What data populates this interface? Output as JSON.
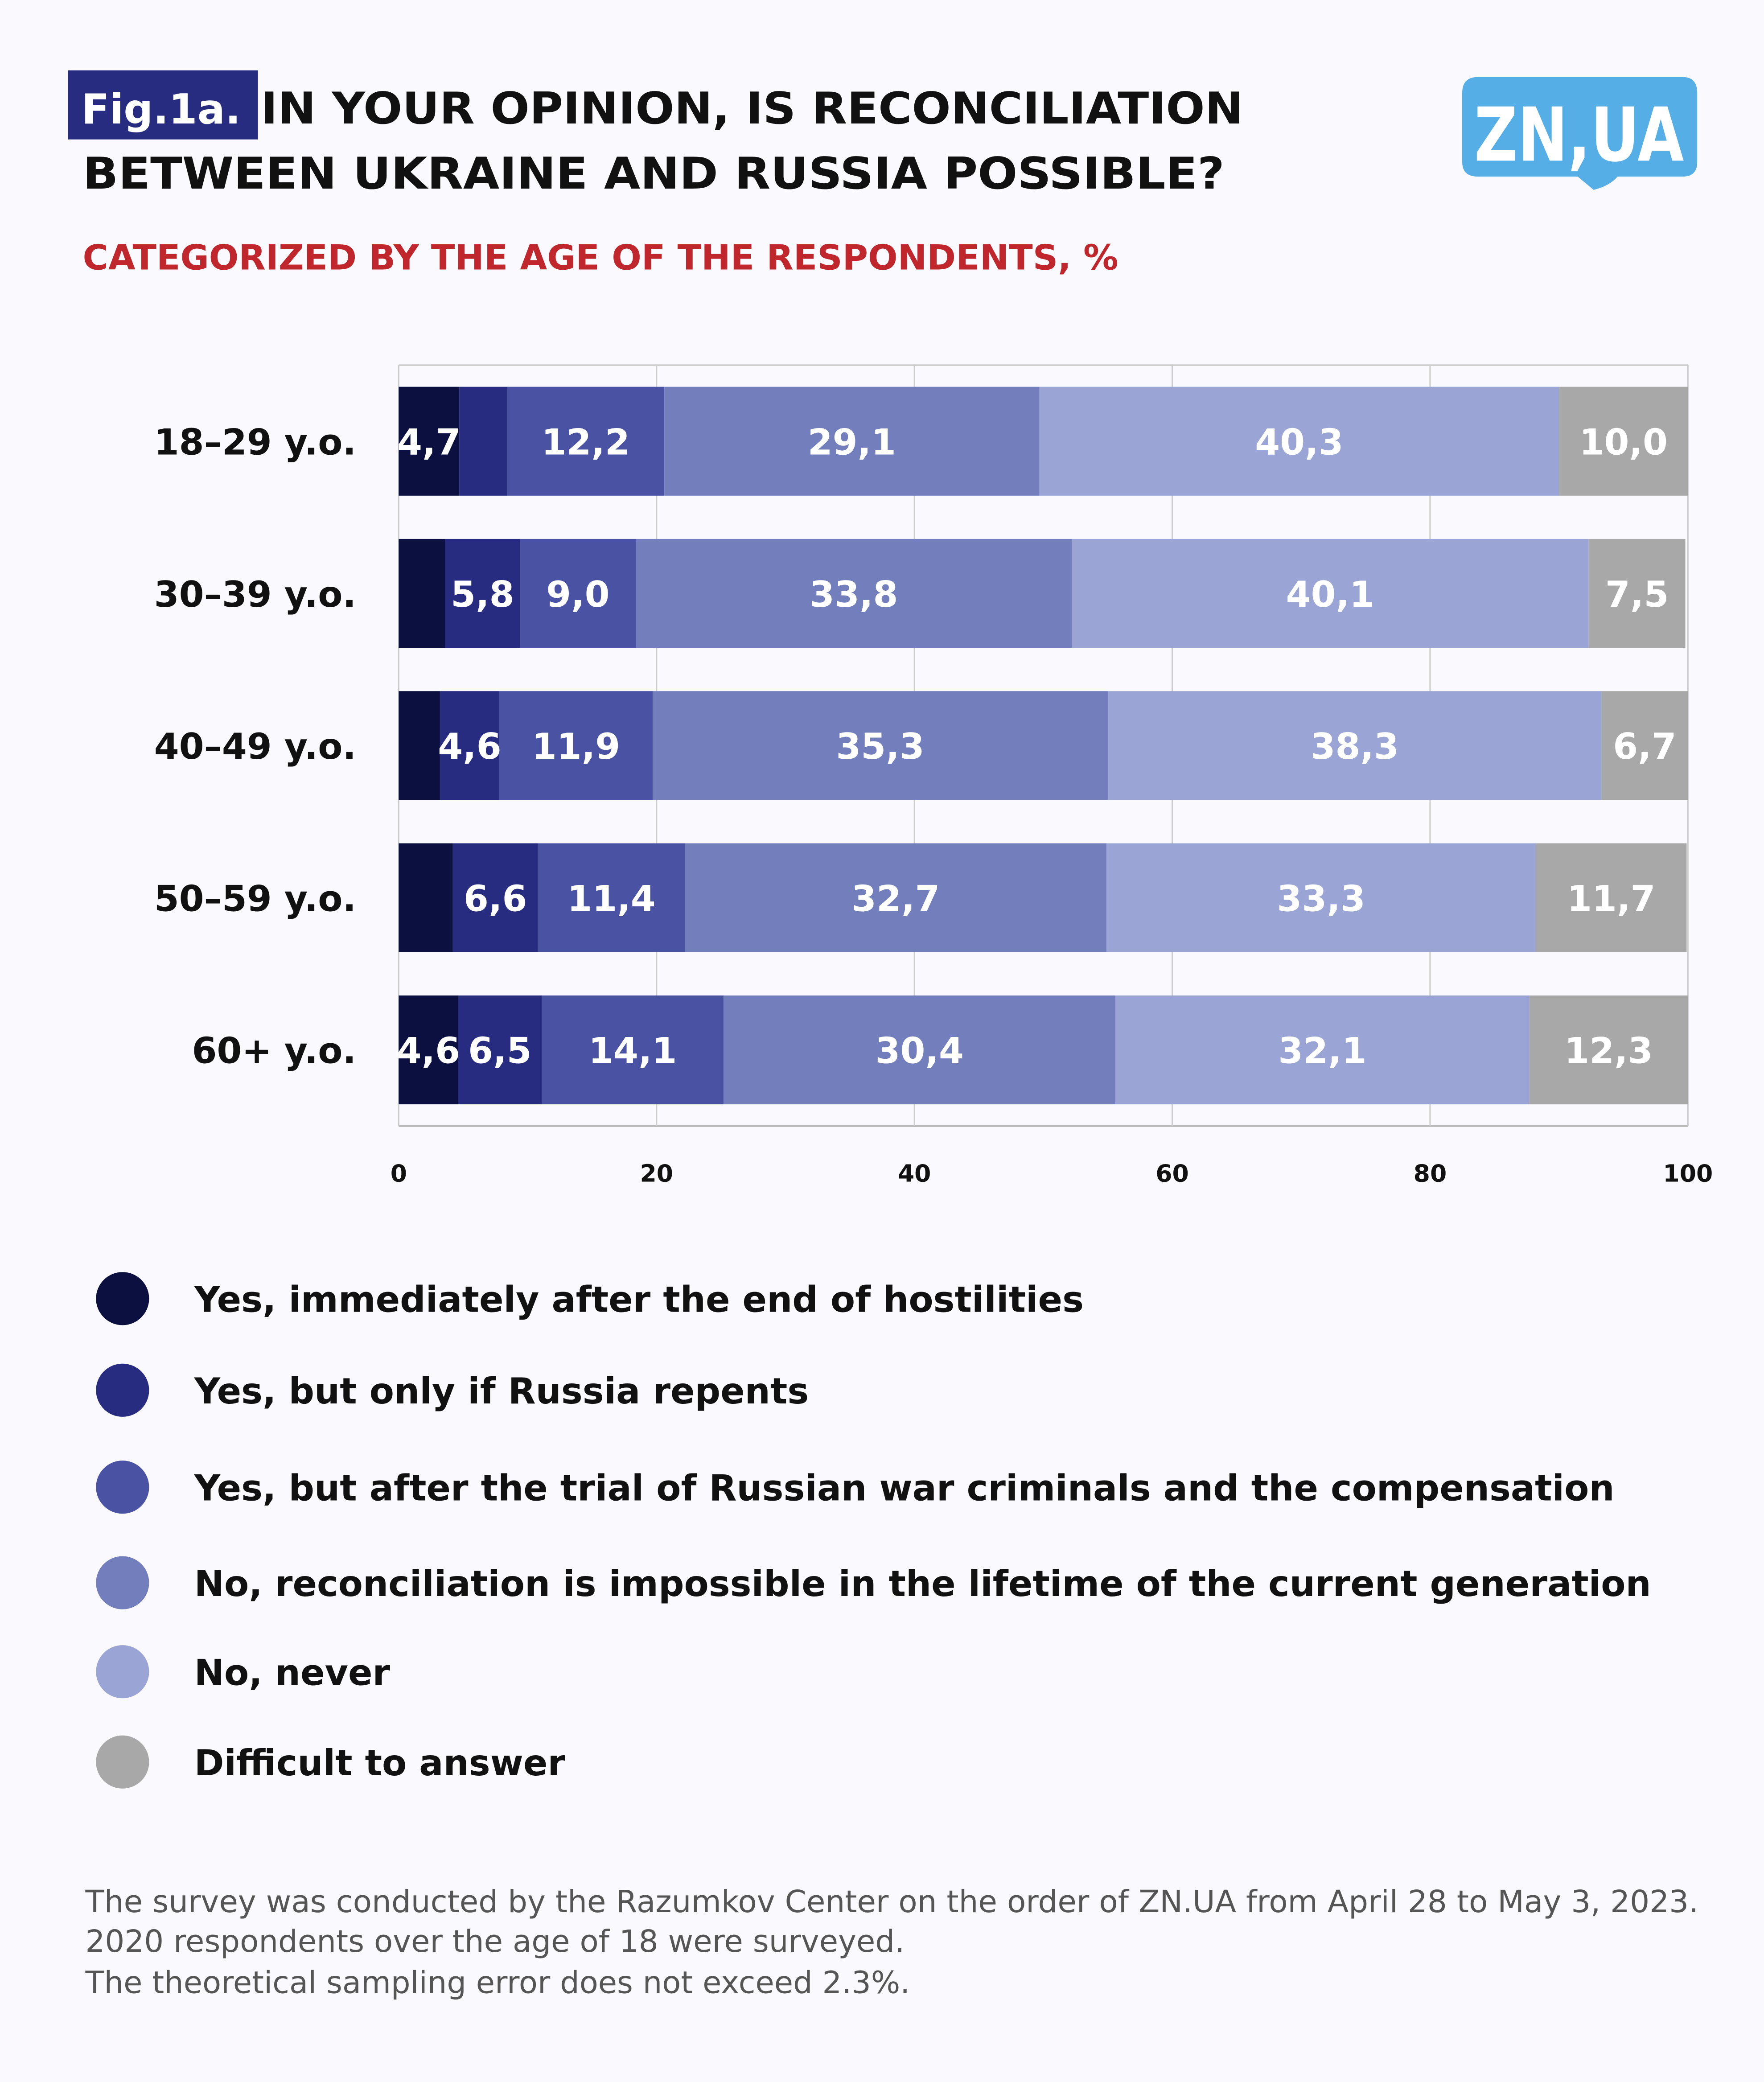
{
  "header": {
    "fig_label": "Fig.1a.",
    "title_line1": "IN YOUR OPINION, IS RECONCILIATION",
    "title_line2": "BETWEEN UKRAINE AND RUSSIA POSSIBLE?",
    "subtitle": "CATEGORIZED BY THE AGE OF THE RESPONDENTS, %",
    "logo": "ZN,UA"
  },
  "colors": {
    "fig_badge": "#272c80",
    "subtitle": "#c0272d",
    "logo": "#55aee6",
    "grid": "#cccccc"
  },
  "chart_data": {
    "type": "bar",
    "orientation": "horizontal",
    "stacked": true,
    "title": "In your opinion, is reconciliation between Ukraine and Russia possible?",
    "subtitle": "Categorized by the age of the respondents, %",
    "categories": [
      "18–29 y.o.",
      "30–39 y.o.",
      "40–49 y.o.",
      "50–59 y.o.",
      "60+ y.o."
    ],
    "xlim": [
      0,
      100
    ],
    "xticks": [
      0,
      20,
      40,
      60,
      80,
      100
    ],
    "grid": true,
    "legend_position": "bottom",
    "series": [
      {
        "name": "Yes, immediately after the end of hostilities",
        "color": "#0b1040",
        "values": [
          4.7,
          3.6,
          3.2,
          4.2,
          4.6
        ],
        "labels": [
          "4,7",
          "",
          "",
          "",
          "4,6"
        ]
      },
      {
        "name": "Yes, but only if Russia repents",
        "color": "#272c80",
        "values": [
          3.7,
          5.8,
          4.6,
          6.6,
          6.5
        ],
        "labels": [
          "",
          "5,8",
          "4,6",
          "6,6",
          "6,5"
        ]
      },
      {
        "name": "Yes, but after the trial of Russian war criminals and the compensation",
        "color": "#4a52a4",
        "values": [
          12.2,
          9.0,
          11.9,
          11.4,
          14.1
        ],
        "labels": [
          "12,2",
          "9,0",
          "11,9",
          "11,4",
          "14,1"
        ]
      },
      {
        "name": "No, reconciliation is impossible in the lifetime of the current generation",
        "color": "#737ebd",
        "values": [
          29.1,
          33.8,
          35.3,
          32.7,
          30.4
        ],
        "labels": [
          "29,1",
          "33,8",
          "35,3",
          "32,7",
          "30,4"
        ]
      },
      {
        "name": "No, never",
        "color": "#9aa5d5",
        "values": [
          40.3,
          40.1,
          38.3,
          33.3,
          32.1
        ],
        "labels": [
          "40,3",
          "40,1",
          "38,3",
          "33,3",
          "32,1"
        ]
      },
      {
        "name": "Difficult to answer",
        "color": "#a8a8a8",
        "values": [
          10.0,
          7.5,
          6.7,
          11.7,
          12.3
        ],
        "labels": [
          "10,0",
          "7,5",
          "6,7",
          "11,7",
          "12,3"
        ]
      }
    ]
  },
  "footer": {
    "line1": "The survey was conducted by the Razumkov Center on the order of ZN.UA from April 28 to May 3, 2023.",
    "line2": "2020 respondents over the age of 18 were surveyed.",
    "line3": "The theoretical sampling error does not exceed 2.3%."
  }
}
